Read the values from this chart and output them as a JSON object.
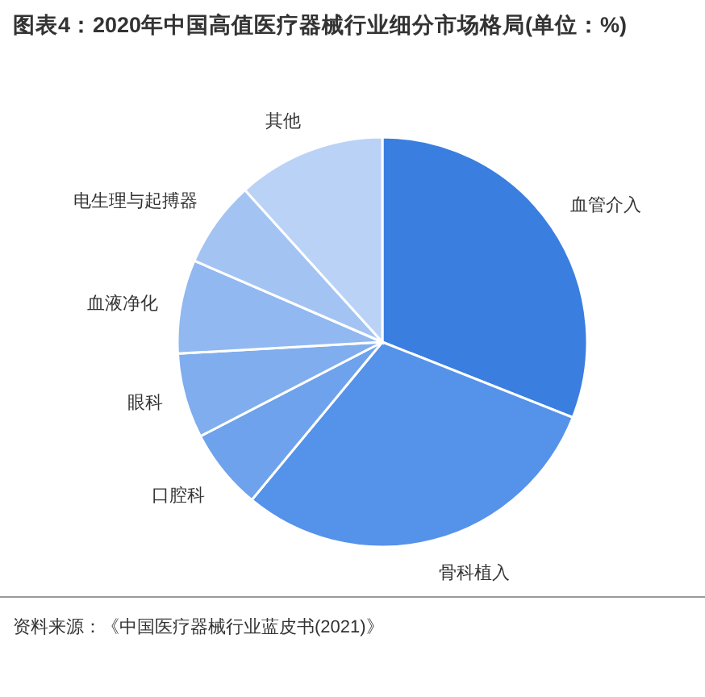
{
  "chart_data": {
    "type": "pie",
    "title": "图表4：2020年中国高值医疗器械行业细分市场格局(单位：%)",
    "categories": [
      "血管介入",
      "骨科植入",
      "口腔科",
      "眼科",
      "血液净化",
      "电生理与起搏器",
      "其他"
    ],
    "values": [
      31,
      30,
      6.4,
      6.7,
      7.4,
      6.8,
      11.7
    ],
    "colors": [
      "#3a7ee0",
      "#5592ea",
      "#6ea2ec",
      "#7fadee",
      "#91b8f0",
      "#a3c4f3",
      "#b9d2f6"
    ],
    "annotations": [
      "资料来源：《中国医疗器械行业蓝皮书(2021)》"
    ]
  }
}
